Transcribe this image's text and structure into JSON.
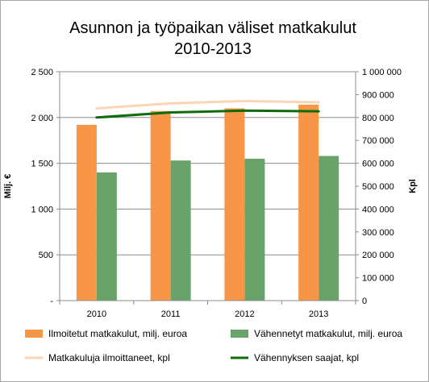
{
  "chart_data": {
    "type": "bar",
    "title_lines": [
      "Asunnon ja työpaikan väliset matkakulut",
      "2010-2013"
    ],
    "categories": [
      "2010",
      "2011",
      "2012",
      "2013"
    ],
    "ylabel_left": "Milj. €",
    "ylabel_right": "Kpl",
    "y_left": {
      "min": 0,
      "max": 2500,
      "ticks": [
        0,
        500,
        1000,
        1500,
        2000,
        2500
      ],
      "tick_labels": [
        "-",
        "500",
        "1 000",
        "1 500",
        "2 000",
        "2 500"
      ]
    },
    "y_right": {
      "min": 0,
      "max": 1000000,
      "ticks": [
        0,
        100000,
        200000,
        300000,
        400000,
        500000,
        600000,
        700000,
        800000,
        900000,
        1000000
      ],
      "tick_labels": [
        "0",
        "100 000",
        "200 000",
        "300 000",
        "400 000",
        "500 000",
        "600 000",
        "700 000",
        "800 000",
        "900 000",
        "1 000 000"
      ]
    },
    "grid": true,
    "legend_position": "bottom",
    "bar_series": [
      {
        "name": "Ilmoitetut matkakulut, milj. euroa",
        "color": "#f79646",
        "axis": "left",
        "values": [
          1920,
          2070,
          2100,
          2140
        ]
      },
      {
        "name": "Vähennetyt matkakulut, milj. euroa",
        "color": "#6aa36a",
        "axis": "left",
        "values": [
          1400,
          1530,
          1550,
          1580
        ]
      }
    ],
    "line_series": [
      {
        "name": "Matkakuluja ilmoittaneet, kpl",
        "color": "#fcd5b4",
        "axis": "right",
        "values": [
          840000,
          862000,
          872000,
          866000
        ]
      },
      {
        "name": "Vähennyksen saajat, kpl",
        "color": "#0e6b0e",
        "axis": "right",
        "values": [
          800000,
          822000,
          830000,
          827000
        ]
      }
    ]
  }
}
